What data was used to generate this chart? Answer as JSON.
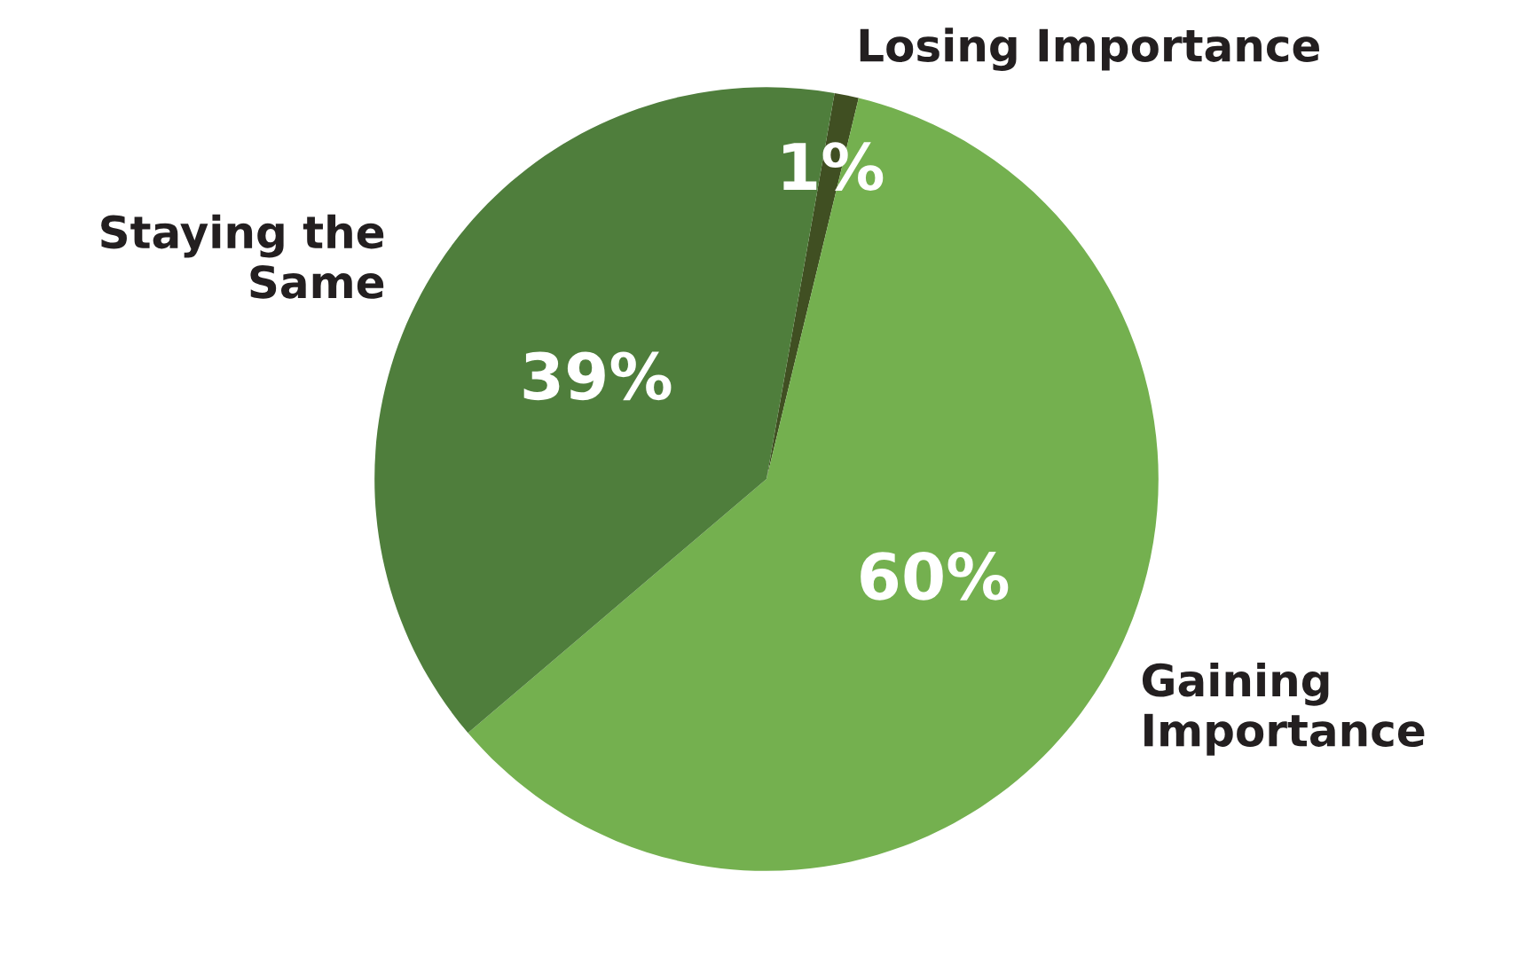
{
  "chart_data": {
    "type": "pie",
    "categories": [
      "Losing Importance",
      "Gaining Importance",
      "Staying the Same"
    ],
    "values": [
      1,
      60,
      39
    ],
    "colors": [
      "#404f22",
      "#74b04f",
      "#4f7e3c"
    ],
    "value_labels": [
      "1%",
      "60%",
      "39%"
    ]
  }
}
